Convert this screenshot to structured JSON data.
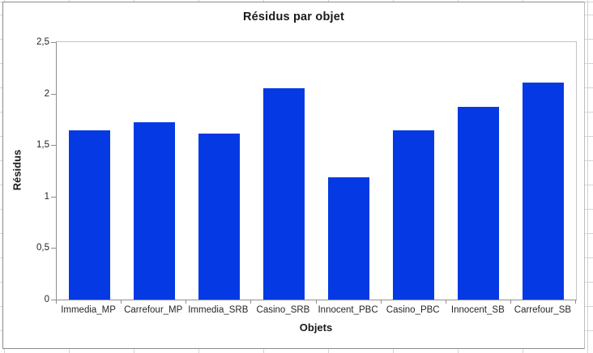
{
  "chart_data": {
    "type": "bar",
    "title": "Résidus par objet",
    "xlabel": "Objets",
    "ylabel": "Résidus",
    "categories": [
      "Immedia_MP",
      "Carrefour_MP",
      "Immedia_SRB",
      "Casino_SRB",
      "Innocent_PBC",
      "Casino_PBC",
      "Innocent_SB",
      "Carrefour_SB"
    ],
    "values": [
      1.64,
      1.72,
      1.61,
      2.05,
      1.19,
      1.64,
      1.87,
      2.11
    ],
    "ylim": [
      0,
      2.5
    ],
    "y_tick_step": 0.5,
    "y_tick_labels": [
      "0",
      "0,5",
      "1",
      "1,5",
      "2",
      "2,5"
    ],
    "grid": false,
    "legend": "none"
  },
  "colors": {
    "bar": "#0539e3",
    "axis_line": "#8e8e8e",
    "plot_border": "#c4c4c4",
    "tick_text": "#262626",
    "title_text": "#1a1a1a",
    "sheet_gridline": "#d4d4d4"
  }
}
